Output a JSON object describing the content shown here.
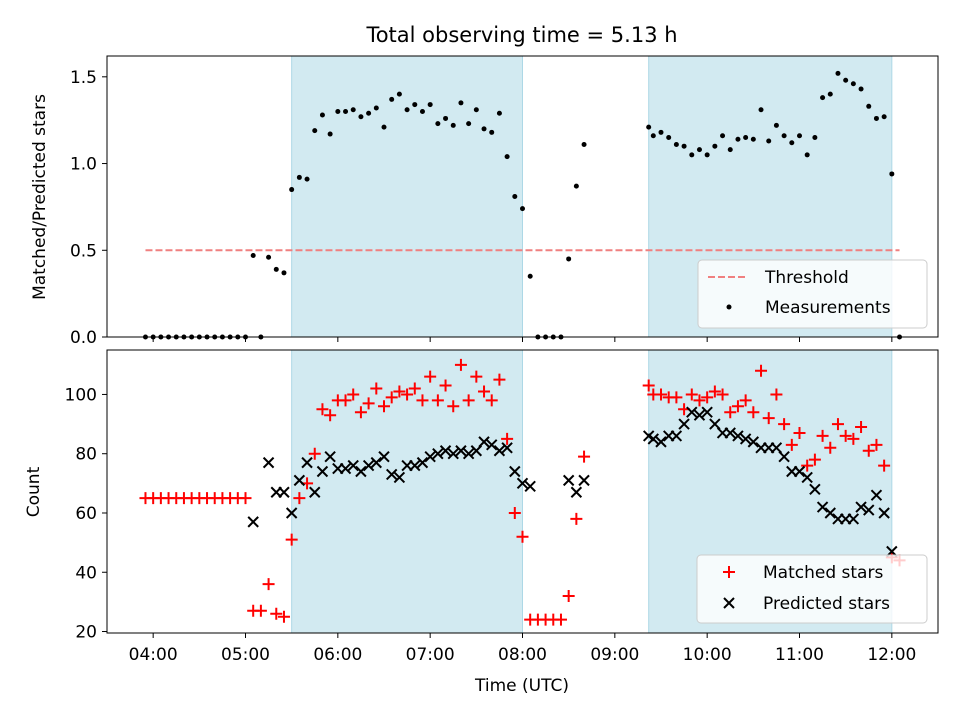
{
  "chart_data": [
    {
      "type": "scatter",
      "title": "Total observing time = 5.13 h",
      "ylabel": "Matched/Predicted stars",
      "ylim": [
        0,
        1.62
      ],
      "yticks": [
        0.0,
        0.5,
        1.0,
        1.5
      ],
      "ytick_labels": [
        "0.0",
        "0.5",
        "1.0",
        "1.5"
      ],
      "shaded_intervals": [
        [
          "05:30",
          "08:00"
        ],
        [
          "09:22",
          "12:00"
        ]
      ],
      "shade_color": "#add8e6",
      "legend_position": "lower right",
      "threshold": {
        "name": "Threshold",
        "value": 0.5,
        "x_range": [
          "03:55",
          "12:05"
        ],
        "color": "#f08080",
        "style": "dashed"
      },
      "series": [
        {
          "name": "Measurements",
          "marker": "dot",
          "color": "#000000",
          "points": [
            [
              "03:55",
              0.0
            ],
            [
              "04:00",
              0.0
            ],
            [
              "04:05",
              0.0
            ],
            [
              "04:10",
              0.0
            ],
            [
              "04:15",
              0.0
            ],
            [
              "04:20",
              0.0
            ],
            [
              "04:25",
              0.0
            ],
            [
              "04:30",
              0.0
            ],
            [
              "04:35",
              0.0
            ],
            [
              "04:40",
              0.0
            ],
            [
              "04:45",
              0.0
            ],
            [
              "04:50",
              0.0
            ],
            [
              "04:55",
              0.0
            ],
            [
              "05:00",
              0.0
            ],
            [
              "05:05",
              0.47
            ],
            [
              "05:10",
              0.0
            ],
            [
              "05:15",
              0.46
            ],
            [
              "05:20",
              0.39
            ],
            [
              "05:25",
              0.37
            ],
            [
              "05:30",
              0.85
            ],
            [
              "05:35",
              0.92
            ],
            [
              "05:40",
              0.91
            ],
            [
              "05:45",
              1.19
            ],
            [
              "05:50",
              1.28
            ],
            [
              "05:55",
              1.17
            ],
            [
              "06:00",
              1.3
            ],
            [
              "06:05",
              1.3
            ],
            [
              "06:10",
              1.31
            ],
            [
              "06:15",
              1.27
            ],
            [
              "06:20",
              1.29
            ],
            [
              "06:25",
              1.32
            ],
            [
              "06:30",
              1.21
            ],
            [
              "06:35",
              1.37
            ],
            [
              "06:40",
              1.4
            ],
            [
              "06:45",
              1.31
            ],
            [
              "06:50",
              1.34
            ],
            [
              "06:55",
              1.3
            ],
            [
              "07:00",
              1.34
            ],
            [
              "07:05",
              1.23
            ],
            [
              "07:10",
              1.26
            ],
            [
              "07:15",
              1.22
            ],
            [
              "07:20",
              1.35
            ],
            [
              "07:25",
              1.23
            ],
            [
              "07:30",
              1.31
            ],
            [
              "07:35",
              1.2
            ],
            [
              "07:40",
              1.18
            ],
            [
              "07:45",
              1.29
            ],
            [
              "07:50",
              1.04
            ],
            [
              "07:55",
              0.81
            ],
            [
              "08:00",
              0.74
            ],
            [
              "08:05",
              0.35
            ],
            [
              "08:10",
              0.0
            ],
            [
              "08:15",
              0.0
            ],
            [
              "08:20",
              0.0
            ],
            [
              "08:25",
              0.0
            ],
            [
              "08:30",
              0.45
            ],
            [
              "08:35",
              0.87
            ],
            [
              "08:40",
              1.11
            ],
            [
              "09:22",
              1.21
            ],
            [
              "09:25",
              1.16
            ],
            [
              "09:30",
              1.18
            ],
            [
              "09:35",
              1.15
            ],
            [
              "09:40",
              1.11
            ],
            [
              "09:45",
              1.1
            ],
            [
              "09:50",
              1.05
            ],
            [
              "09:55",
              1.08
            ],
            [
              "10:00",
              1.05
            ],
            [
              "10:05",
              1.1
            ],
            [
              "10:10",
              1.16
            ],
            [
              "10:15",
              1.08
            ],
            [
              "10:20",
              1.14
            ],
            [
              "10:25",
              1.15
            ],
            [
              "10:30",
              1.14
            ],
            [
              "10:35",
              1.31
            ],
            [
              "10:40",
              1.13
            ],
            [
              "10:45",
              1.22
            ],
            [
              "10:50",
              1.16
            ],
            [
              "10:55",
              1.12
            ],
            [
              "11:00",
              1.16
            ],
            [
              "11:05",
              1.05
            ],
            [
              "11:10",
              1.15
            ],
            [
              "11:15",
              1.38
            ],
            [
              "11:20",
              1.4
            ],
            [
              "11:25",
              1.52
            ],
            [
              "11:30",
              1.48
            ],
            [
              "11:35",
              1.46
            ],
            [
              "11:40",
              1.43
            ],
            [
              "11:45",
              1.33
            ],
            [
              "11:50",
              1.26
            ],
            [
              "11:55",
              1.27
            ],
            [
              "12:00",
              0.94
            ],
            [
              "12:05",
              0.0
            ]
          ]
        }
      ]
    },
    {
      "type": "scatter",
      "xlabel": "Time (UTC)",
      "ylabel": "Count",
      "xlim": [
        "03:30",
        "12:30"
      ],
      "xticks": [
        "04:00",
        "05:00",
        "06:00",
        "07:00",
        "08:00",
        "09:00",
        "10:00",
        "11:00",
        "12:00"
      ],
      "ylim": [
        19.5,
        115
      ],
      "yticks": [
        20,
        40,
        60,
        80,
        100
      ],
      "ytick_labels": [
        "20",
        "40",
        "60",
        "80",
        "100"
      ],
      "shaded_intervals": [
        [
          "05:30",
          "08:00"
        ],
        [
          "09:22",
          "12:00"
        ]
      ],
      "shade_color": "#add8e6",
      "legend_position": "lower right",
      "series": [
        {
          "name": "Matched stars",
          "marker": "+",
          "color": "#ff0000",
          "points": [
            [
              "03:55",
              65
            ],
            [
              "04:00",
              65
            ],
            [
              "04:05",
              65
            ],
            [
              "04:10",
              65
            ],
            [
              "04:15",
              65
            ],
            [
              "04:20",
              65
            ],
            [
              "04:25",
              65
            ],
            [
              "04:30",
              65
            ],
            [
              "04:35",
              65
            ],
            [
              "04:40",
              65
            ],
            [
              "04:45",
              65
            ],
            [
              "04:50",
              65
            ],
            [
              "04:55",
              65
            ],
            [
              "05:00",
              65
            ],
            [
              "05:05",
              27
            ],
            [
              "05:10",
              27
            ],
            [
              "05:15",
              36
            ],
            [
              "05:20",
              26
            ],
            [
              "05:25",
              25
            ],
            [
              "05:30",
              51
            ],
            [
              "05:35",
              65
            ],
            [
              "05:40",
              70
            ],
            [
              "05:45",
              80
            ],
            [
              "05:50",
              95
            ],
            [
              "05:55",
              93
            ],
            [
              "06:00",
              98
            ],
            [
              "06:05",
              98
            ],
            [
              "06:10",
              100
            ],
            [
              "06:15",
              94
            ],
            [
              "06:20",
              97
            ],
            [
              "06:25",
              102
            ],
            [
              "06:30",
              96
            ],
            [
              "06:35",
              99
            ],
            [
              "06:40",
              101
            ],
            [
              "06:45",
              100
            ],
            [
              "06:50",
              102
            ],
            [
              "06:55",
              98
            ],
            [
              "07:00",
              106
            ],
            [
              "07:05",
              98
            ],
            [
              "07:10",
              103
            ],
            [
              "07:15",
              96
            ],
            [
              "07:20",
              110
            ],
            [
              "07:25",
              98
            ],
            [
              "07:30",
              106
            ],
            [
              "07:35",
              101
            ],
            [
              "07:40",
              98
            ],
            [
              "07:45",
              105
            ],
            [
              "07:50",
              85
            ],
            [
              "07:55",
              60
            ],
            [
              "08:00",
              52
            ],
            [
              "08:05",
              24
            ],
            [
              "08:10",
              24
            ],
            [
              "08:15",
              24
            ],
            [
              "08:20",
              24
            ],
            [
              "08:25",
              24
            ],
            [
              "08:30",
              32
            ],
            [
              "08:35",
              58
            ],
            [
              "08:40",
              79
            ],
            [
              "09:22",
              103
            ],
            [
              "09:25",
              100
            ],
            [
              "09:30",
              100
            ],
            [
              "09:35",
              99
            ],
            [
              "09:40",
              99
            ],
            [
              "09:45",
              95
            ],
            [
              "09:50",
              100
            ],
            [
              "09:55",
              98
            ],
            [
              "10:00",
              99
            ],
            [
              "10:05",
              101
            ],
            [
              "10:10",
              100
            ],
            [
              "10:15",
              94
            ],
            [
              "10:20",
              96
            ],
            [
              "10:25",
              98
            ],
            [
              "10:30",
              94
            ],
            [
              "10:35",
              108
            ],
            [
              "10:40",
              92
            ],
            [
              "10:45",
              100
            ],
            [
              "10:50",
              90
            ],
            [
              "10:55",
              83
            ],
            [
              "11:00",
              87
            ],
            [
              "11:05",
              76
            ],
            [
              "11:10",
              78
            ],
            [
              "11:15",
              86
            ],
            [
              "11:20",
              82
            ],
            [
              "11:25",
              90
            ],
            [
              "11:30",
              86
            ],
            [
              "11:35",
              85
            ],
            [
              "11:40",
              89
            ],
            [
              "11:45",
              81
            ],
            [
              "11:50",
              83
            ],
            [
              "11:55",
              76
            ],
            [
              "12:00",
              45
            ],
            [
              "12:05",
              44
            ]
          ]
        },
        {
          "name": "Predicted stars",
          "marker": "x",
          "color": "#000000",
          "points": [
            [
              "05:05",
              57
            ],
            [
              "05:15",
              77
            ],
            [
              "05:20",
              67
            ],
            [
              "05:25",
              67
            ],
            [
              "05:30",
              60
            ],
            [
              "05:35",
              71
            ],
            [
              "05:40",
              77
            ],
            [
              "05:45",
              67
            ],
            [
              "05:50",
              74
            ],
            [
              "05:55",
              79
            ],
            [
              "06:00",
              75
            ],
            [
              "06:05",
              75
            ],
            [
              "06:10",
              76
            ],
            [
              "06:15",
              74
            ],
            [
              "06:20",
              76
            ],
            [
              "06:25",
              77
            ],
            [
              "06:30",
              79
            ],
            [
              "06:35",
              73
            ],
            [
              "06:40",
              72
            ],
            [
              "06:45",
              76
            ],
            [
              "06:50",
              76
            ],
            [
              "06:55",
              77
            ],
            [
              "07:00",
              79
            ],
            [
              "07:05",
              80
            ],
            [
              "07:10",
              81
            ],
            [
              "07:15",
              80
            ],
            [
              "07:20",
              81
            ],
            [
              "07:25",
              80
            ],
            [
              "07:30",
              81
            ],
            [
              "07:35",
              84
            ],
            [
              "07:40",
              83
            ],
            [
              "07:45",
              81
            ],
            [
              "07:50",
              82
            ],
            [
              "07:55",
              74
            ],
            [
              "08:00",
              70
            ],
            [
              "08:05",
              69
            ],
            [
              "08:30",
              71
            ],
            [
              "08:35",
              67
            ],
            [
              "08:40",
              71
            ],
            [
              "09:22",
              86
            ],
            [
              "09:25",
              85
            ],
            [
              "09:30",
              84
            ],
            [
              "09:35",
              86
            ],
            [
              "09:40",
              86
            ],
            [
              "09:45",
              90
            ],
            [
              "09:50",
              94
            ],
            [
              "09:55",
              93
            ],
            [
              "10:00",
              94
            ],
            [
              "10:05",
              90
            ],
            [
              "10:10",
              87
            ],
            [
              "10:15",
              87
            ],
            [
              "10:20",
              86
            ],
            [
              "10:25",
              85
            ],
            [
              "10:30",
              84
            ],
            [
              "10:35",
              82
            ],
            [
              "10:40",
              82
            ],
            [
              "10:45",
              82
            ],
            [
              "10:50",
              79
            ],
            [
              "10:55",
              74
            ],
            [
              "11:00",
              74
            ],
            [
              "11:05",
              72
            ],
            [
              "11:10",
              68
            ],
            [
              "11:15",
              62
            ],
            [
              "11:20",
              60
            ],
            [
              "11:25",
              58
            ],
            [
              "11:30",
              58
            ],
            [
              "11:35",
              58
            ],
            [
              "11:40",
              62
            ],
            [
              "11:45",
              61
            ],
            [
              "11:50",
              66
            ],
            [
              "11:55",
              60
            ],
            [
              "12:00",
              47
            ]
          ]
        }
      ]
    }
  ]
}
